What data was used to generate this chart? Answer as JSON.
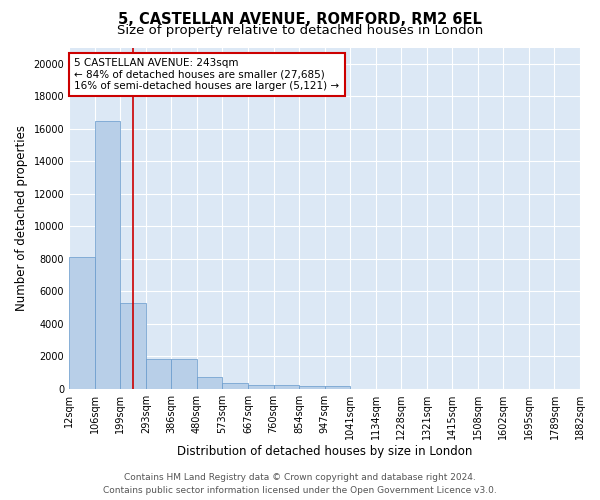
{
  "title_line1": "5, CASTELLAN AVENUE, ROMFORD, RM2 6EL",
  "title_line2": "Size of property relative to detached houses in London",
  "xlabel": "Distribution of detached houses by size in London",
  "ylabel": "Number of detached properties",
  "bar_values": [
    8100,
    16500,
    5300,
    1800,
    1800,
    700,
    350,
    250,
    200,
    175,
    150,
    0,
    0,
    0,
    0,
    0,
    0,
    0,
    0,
    0
  ],
  "bin_labels": [
    "12sqm",
    "106sqm",
    "199sqm",
    "293sqm",
    "386sqm",
    "480sqm",
    "573sqm",
    "667sqm",
    "760sqm",
    "854sqm",
    "947sqm",
    "1041sqm",
    "1134sqm",
    "1228sqm",
    "1321sqm",
    "1415sqm",
    "1508sqm",
    "1602sqm",
    "1695sqm",
    "1789sqm",
    "1882sqm"
  ],
  "bar_color": "#b8cfe8",
  "bar_edge_color": "#6699cc",
  "vline_x": 2.5,
  "vline_color": "#cc0000",
  "annotation_text": "5 CASTELLAN AVENUE: 243sqm\n← 84% of detached houses are smaller (27,685)\n16% of semi-detached houses are larger (5,121) →",
  "annotation_box_color": "#ffffff",
  "annotation_box_edge": "#cc0000",
  "ylim": [
    0,
    21000
  ],
  "yticks": [
    0,
    2000,
    4000,
    6000,
    8000,
    10000,
    12000,
    14000,
    16000,
    18000,
    20000
  ],
  "fig_bg_color": "#ffffff",
  "plot_bg_color": "#dce8f5",
  "footer_line1": "Contains HM Land Registry data © Crown copyright and database right 2024.",
  "footer_line2": "Contains public sector information licensed under the Open Government Licence v3.0.",
  "title_fontsize": 10.5,
  "subtitle_fontsize": 9.5,
  "axis_label_fontsize": 8.5,
  "tick_fontsize": 7,
  "annotation_fontsize": 7.5,
  "footer_fontsize": 6.5
}
